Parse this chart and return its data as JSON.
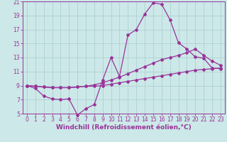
{
  "xlabel": "Windchill (Refroidissement éolien,°C)",
  "background_color": "#cce8e8",
  "line_color": "#993399",
  "grid_color": "#aacccc",
  "axis_color": "#993399",
  "tick_color": "#993399",
  "xlim": [
    -0.5,
    23.5
  ],
  "ylim": [
    5,
    21
  ],
  "xticks": [
    0,
    1,
    2,
    3,
    4,
    5,
    6,
    7,
    8,
    9,
    10,
    11,
    12,
    13,
    14,
    15,
    16,
    17,
    18,
    19,
    20,
    21,
    22,
    23
  ],
  "yticks": [
    5,
    7,
    9,
    11,
    13,
    15,
    17,
    19,
    21
  ],
  "line1_x": [
    0,
    1,
    2,
    3,
    4,
    5,
    6,
    7,
    8,
    9,
    10,
    11,
    12,
    13,
    14,
    15,
    16,
    17,
    18,
    19,
    20,
    21,
    22,
    23
  ],
  "line1_y": [
    9.0,
    8.6,
    7.5,
    7.1,
    7.0,
    7.1,
    4.8,
    5.7,
    6.3,
    9.8,
    13.0,
    10.3,
    16.2,
    17.0,
    19.2,
    20.8,
    20.6,
    18.4,
    15.1,
    14.2,
    13.1,
    12.9,
    11.5,
    11.4
  ],
  "line2_x": [
    0,
    1,
    2,
    3,
    4,
    5,
    6,
    7,
    8,
    9,
    10,
    11,
    12,
    13,
    14,
    15,
    16,
    17,
    18,
    19,
    20,
    21,
    22,
    23
  ],
  "line2_y": [
    9.0,
    8.9,
    8.8,
    8.7,
    8.7,
    8.7,
    8.8,
    8.9,
    8.9,
    9.0,
    9.2,
    9.4,
    9.6,
    9.8,
    10.0,
    10.2,
    10.4,
    10.6,
    10.8,
    11.0,
    11.2,
    11.3,
    11.4,
    11.5
  ],
  "line3_x": [
    0,
    1,
    2,
    3,
    4,
    5,
    6,
    7,
    8,
    9,
    10,
    11,
    12,
    13,
    14,
    15,
    16,
    17,
    18,
    19,
    20,
    21,
    22,
    23
  ],
  "line3_y": [
    9.0,
    8.9,
    8.8,
    8.7,
    8.7,
    8.7,
    8.8,
    8.9,
    9.1,
    9.4,
    9.8,
    10.2,
    10.7,
    11.2,
    11.7,
    12.2,
    12.7,
    13.0,
    13.3,
    13.7,
    14.2,
    13.3,
    12.5,
    11.9
  ],
  "font_size_ticks": 5.5,
  "font_size_label": 6.5
}
